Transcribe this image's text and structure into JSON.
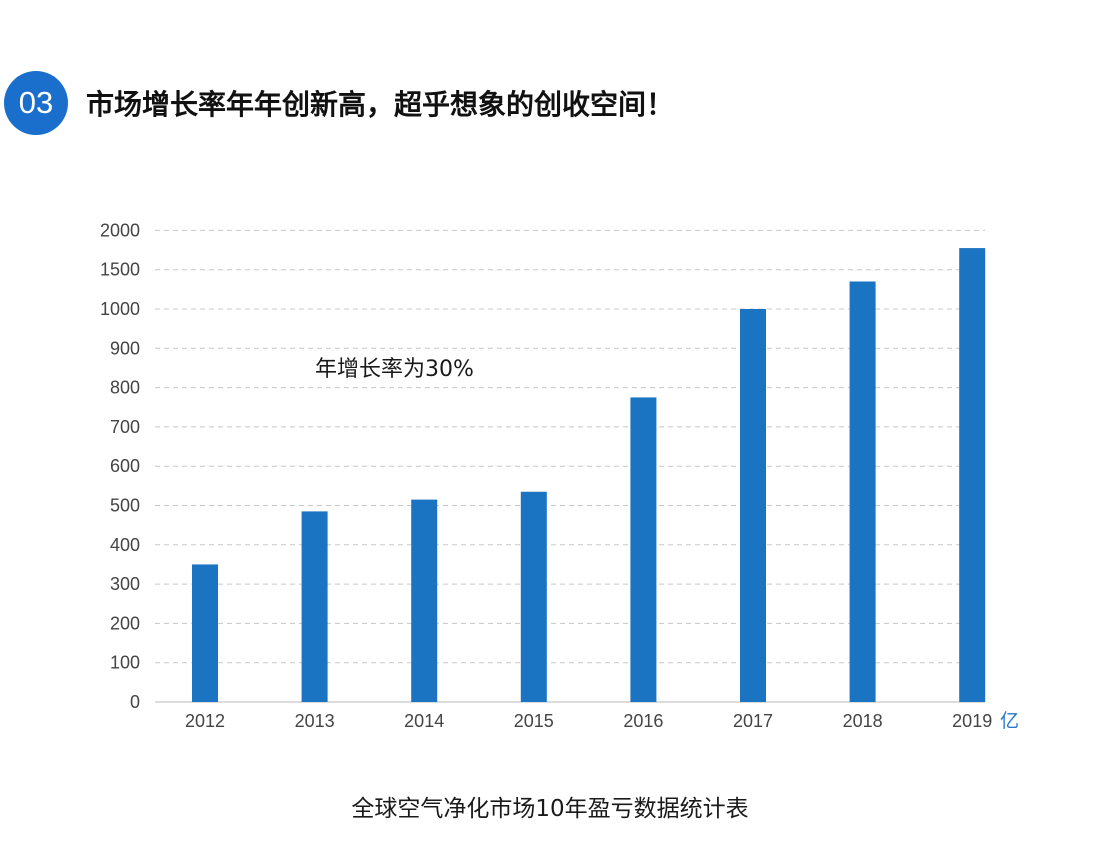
{
  "section": {
    "number": "03",
    "heading": "市场增长率年年创新高，超乎想象的创收空间！"
  },
  "colors": {
    "accent": "#1a6fcc",
    "bar": "#1a74c2",
    "grid": "#c8c8c8"
  },
  "chart_data": {
    "type": "bar",
    "title": "全球空气净化市场10年盈亏数据统计表",
    "xlabel": "",
    "ylabel": "",
    "unit": "亿",
    "categories": [
      "2012",
      "2013",
      "2014",
      "2015",
      "2016",
      "2017",
      "2018",
      "2019"
    ],
    "y_tick_labels": [
      "0",
      "100",
      "200",
      "300",
      "400",
      "500",
      "600",
      "700",
      "800",
      "900",
      "1000",
      "1500",
      "2000"
    ],
    "values": [
      350,
      485,
      515,
      535,
      775,
      1000,
      1350,
      1775
    ],
    "annotation": "年增长率为30%",
    "grid": true,
    "legend": "none"
  }
}
